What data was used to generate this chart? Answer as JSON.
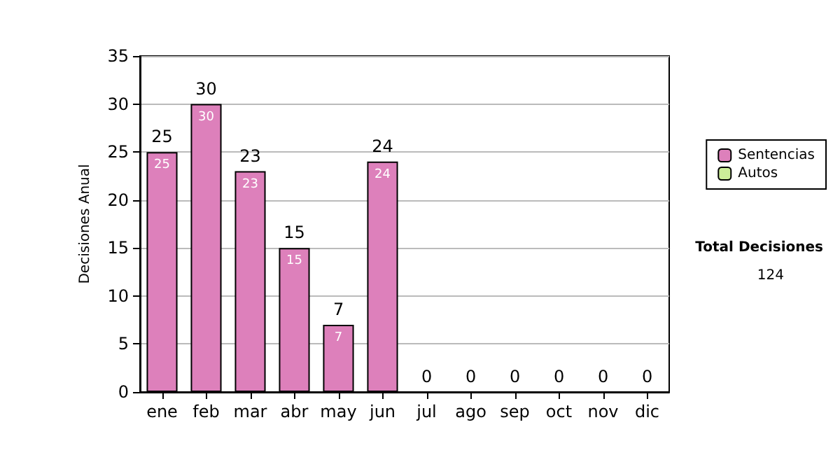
{
  "chart_data": {
    "type": "bar",
    "ylabel": "Decisiones Anual",
    "categories": [
      "ene",
      "feb",
      "mar",
      "abr",
      "may",
      "jun",
      "jul",
      "ago",
      "sep",
      "oct",
      "nov",
      "dic"
    ],
    "stacked": true,
    "series": [
      {
        "name": "Sentencias",
        "color": "#dd80bb",
        "values": [
          25,
          30,
          23,
          15,
          7,
          24,
          0,
          0,
          0,
          0,
          0,
          0
        ],
        "value_labels": [
          "25",
          "30",
          "23",
          "15",
          "7",
          "24",
          null,
          null,
          null,
          null,
          null,
          null
        ]
      },
      {
        "name": "Autos",
        "color": "#ccee99",
        "values": [
          0,
          0,
          0,
          0,
          0,
          0,
          0,
          0,
          0,
          0,
          0,
          0
        ]
      }
    ],
    "totals": [
      "25",
      "30",
      "23",
      "15",
      "7",
      "24",
      "0",
      "0",
      "0",
      "0",
      "0",
      "0"
    ],
    "ylim": [
      0,
      35
    ],
    "yticks": [
      0,
      5,
      10,
      15,
      20,
      25,
      30,
      35
    ],
    "grid": "y",
    "legend": "right",
    "annotations": [
      "Total Decisiones",
      "124"
    ]
  }
}
